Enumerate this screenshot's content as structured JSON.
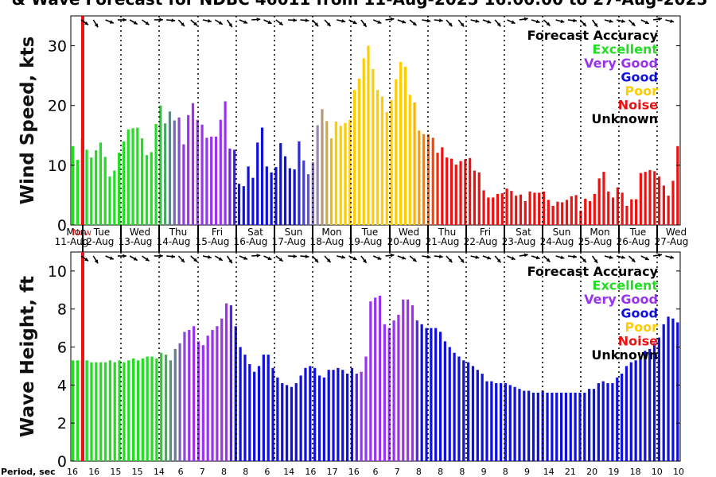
{
  "title": "& Wave Forecast for NDBC 46011 from 11-Aug-2025 16:00:00 to 27-Aug-2025",
  "accuracy_legend": {
    "title": "Forecast Accuracy",
    "entries": [
      {
        "label": "Excellent",
        "color": "#22dd22"
      },
      {
        "label": "Very Good",
        "color": "#9933ee"
      },
      {
        "label": "Good",
        "color": "#1111dd"
      },
      {
        "label": "Poor",
        "color": "#ffcc00"
      },
      {
        "label": "Noise",
        "color": "#ee1111"
      },
      {
        "label": "Unknown",
        "color": "#000000"
      }
    ]
  },
  "day_labels": [
    {
      "day": "Mon",
      "date": "11-Aug"
    },
    {
      "day": "Tue",
      "date": "12-Aug"
    },
    {
      "day": "Wed",
      "date": "13-Aug"
    },
    {
      "day": "Thu",
      "date": "14-Aug"
    },
    {
      "day": "Fri",
      "date": "15-Aug"
    },
    {
      "day": "Sat",
      "date": "16-Aug"
    },
    {
      "day": "Sun",
      "date": "17-Aug"
    },
    {
      "day": "Mon",
      "date": "18-Aug"
    },
    {
      "day": "Tue",
      "date": "19-Aug"
    },
    {
      "day": "Wed",
      "date": "20-Aug"
    },
    {
      "day": "Thu",
      "date": "21-Aug"
    },
    {
      "day": "Fri",
      "date": "22-Aug"
    },
    {
      "day": "Sat",
      "date": "23-Aug"
    },
    {
      "day": "Sun",
      "date": "24-Aug"
    },
    {
      "day": "Mon",
      "date": "25-Aug"
    },
    {
      "day": "Tue",
      "date": "26-Aug"
    },
    {
      "day": "Wed",
      "date": "27-Aug"
    }
  ],
  "now_marker_label": "Now",
  "period_label": "Period, sec",
  "periods": [
    "16",
    "16",
    "15",
    "15",
    "14",
    "6",
    "7",
    "8",
    "8",
    "6",
    "14",
    "16",
    "17",
    "16",
    "6",
    "7",
    "8",
    "8",
    "8",
    "9",
    "8",
    "9",
    "14",
    "21",
    "20",
    "19",
    "18",
    "10",
    "10"
  ],
  "chart_data": [
    {
      "type": "bar",
      "name": "wind",
      "ylabel": "Wind Speed, kts",
      "ylim": [
        0,
        35
      ],
      "yticks": [
        0,
        10,
        20,
        30
      ],
      "values": [
        13.2,
        10.9,
        14.4,
        12.6,
        11.3,
        12.5,
        13.8,
        11.4,
        8.1,
        9.1,
        12.1,
        14.0,
        16.0,
        16.2,
        16.3,
        14.5,
        11.7,
        12.2,
        16.9,
        20.0,
        17.0,
        19.0,
        17.5,
        18.0,
        13.5,
        18.4,
        20.4,
        17.6,
        16.8,
        14.6,
        14.8,
        14.8,
        17.6,
        20.7,
        12.8,
        12.6,
        6.9,
        6.5,
        9.8,
        7.9,
        13.8,
        16.3,
        9.8,
        8.8,
        9.7,
        13.7,
        11.5,
        9.5,
        9.3,
        14.0,
        10.8,
        8.5,
        10.5,
        16.7,
        19.4,
        17.4,
        14.5,
        17.3,
        16.6,
        17.1,
        17.6,
        22.6,
        24.5,
        27.9,
        30.0,
        26.1,
        22.6,
        21.5,
        18.9,
        20.9,
        24.4,
        27.3,
        26.5,
        21.8,
        20.5,
        15.8,
        15.2,
        15.2,
        14.6,
        12.1,
        13.0,
        11.3,
        11.1,
        10.1,
        10.7,
        11.0,
        11.2,
        9.1,
        8.8,
        5.8,
        4.6,
        4.6,
        5.2,
        5.3,
        6.1,
        5.7,
        4.9,
        5.1,
        4.0,
        5.6,
        5.4,
        5.4,
        5.6,
        4.2,
        3.2,
        3.9,
        3.8,
        4.2,
        4.8,
        5.0,
        2.4,
        4.4,
        4.0,
        5.2,
        7.8,
        8.9,
        5.6,
        4.6,
        6.3,
        5.4,
        3.2,
        4.3,
        4.3,
        8.7,
        8.9,
        9.2,
        9.0,
        8.1,
        6.6,
        4.9,
        7.4,
        13.2
      ]
    },
    {
      "type": "bar",
      "name": "wave",
      "ylabel": "Wave Height, ft",
      "ylim": [
        0,
        11
      ],
      "yticks": [
        0,
        2,
        4,
        6,
        8,
        10
      ],
      "values": [
        5.3,
        5.3,
        5.3,
        5.3,
        5.2,
        5.2,
        5.2,
        5.2,
        5.3,
        5.2,
        5.3,
        5.2,
        5.3,
        5.4,
        5.3,
        5.4,
        5.5,
        5.5,
        5.4,
        5.7,
        5.6,
        5.3,
        5.9,
        6.2,
        6.8,
        6.9,
        7.1,
        6.3,
        6.1,
        6.6,
        6.9,
        7.1,
        7.5,
        8.3,
        8.2,
        7.1,
        6.0,
        5.6,
        5.1,
        4.7,
        5.0,
        5.6,
        5.6,
        4.9,
        4.4,
        4.1,
        4.0,
        3.9,
        4.1,
        4.5,
        4.9,
        5.0,
        4.9,
        4.5,
        4.4,
        4.8,
        4.8,
        4.9,
        4.8,
        4.6,
        4.9,
        4.6,
        4.7,
        5.5,
        8.4,
        8.6,
        8.7,
        7.2,
        7.0,
        7.4,
        7.7,
        8.5,
        8.5,
        8.2,
        7.4,
        7.2,
        7.0,
        7.0,
        7.0,
        6.8,
        6.3,
        6.0,
        5.7,
        5.5,
        5.3,
        5.2,
        5.0,
        4.8,
        4.6,
        4.2,
        4.2,
        4.1,
        4.1,
        4.1,
        4.0,
        3.9,
        3.8,
        3.7,
        3.7,
        3.6,
        3.6,
        3.7,
        3.6,
        3.6,
        3.6,
        3.6,
        3.6,
        3.6,
        3.6,
        3.6,
        3.6,
        3.8,
        3.8,
        4.1,
        4.2,
        4.1,
        4.1,
        4.4,
        4.6,
        5.0,
        5.2,
        5.3,
        5.5,
        5.8,
        5.9,
        6.2,
        6.5,
        7.2,
        7.6,
        7.5,
        7.3
      ]
    }
  ]
}
